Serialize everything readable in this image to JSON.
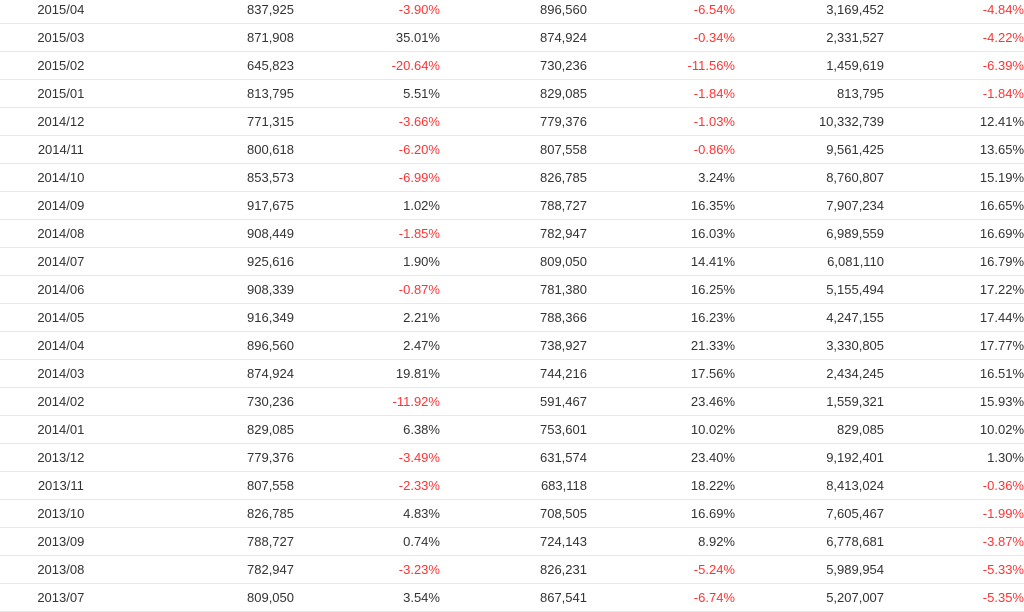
{
  "colors": {
    "text": "#333333",
    "negative": "#ff3333",
    "row_border": "#e8e8e8",
    "background": "#ffffff"
  },
  "rows": [
    [
      "2015/04",
      "837,925",
      "-3.90%",
      "896,560",
      "-6.54%",
      "3,169,452",
      "-4.84%"
    ],
    [
      "2015/03",
      "871,908",
      "35.01%",
      "874,924",
      "-0.34%",
      "2,331,527",
      "-4.22%"
    ],
    [
      "2015/02",
      "645,823",
      "-20.64%",
      "730,236",
      "-11.56%",
      "1,459,619",
      "-6.39%"
    ],
    [
      "2015/01",
      "813,795",
      "5.51%",
      "829,085",
      "-1.84%",
      "813,795",
      "-1.84%"
    ],
    [
      "2014/12",
      "771,315",
      "-3.66%",
      "779,376",
      "-1.03%",
      "10,332,739",
      "12.41%"
    ],
    [
      "2014/11",
      "800,618",
      "-6.20%",
      "807,558",
      "-0.86%",
      "9,561,425",
      "13.65%"
    ],
    [
      "2014/10",
      "853,573",
      "-6.99%",
      "826,785",
      "3.24%",
      "8,760,807",
      "15.19%"
    ],
    [
      "2014/09",
      "917,675",
      "1.02%",
      "788,727",
      "16.35%",
      "7,907,234",
      "16.65%"
    ],
    [
      "2014/08",
      "908,449",
      "-1.85%",
      "782,947",
      "16.03%",
      "6,989,559",
      "16.69%"
    ],
    [
      "2014/07",
      "925,616",
      "1.90%",
      "809,050",
      "14.41%",
      "6,081,110",
      "16.79%"
    ],
    [
      "2014/06",
      "908,339",
      "-0.87%",
      "781,380",
      "16.25%",
      "5,155,494",
      "17.22%"
    ],
    [
      "2014/05",
      "916,349",
      "2.21%",
      "788,366",
      "16.23%",
      "4,247,155",
      "17.44%"
    ],
    [
      "2014/04",
      "896,560",
      "2.47%",
      "738,927",
      "21.33%",
      "3,330,805",
      "17.77%"
    ],
    [
      "2014/03",
      "874,924",
      "19.81%",
      "744,216",
      "17.56%",
      "2,434,245",
      "16.51%"
    ],
    [
      "2014/02",
      "730,236",
      "-11.92%",
      "591,467",
      "23.46%",
      "1,559,321",
      "15.93%"
    ],
    [
      "2014/01",
      "829,085",
      "6.38%",
      "753,601",
      "10.02%",
      "829,085",
      "10.02%"
    ],
    [
      "2013/12",
      "779,376",
      "-3.49%",
      "631,574",
      "23.40%",
      "9,192,401",
      "1.30%"
    ],
    [
      "2013/11",
      "807,558",
      "-2.33%",
      "683,118",
      "18.22%",
      "8,413,024",
      "-0.36%"
    ],
    [
      "2013/10",
      "826,785",
      "4.83%",
      "708,505",
      "16.69%",
      "7,605,467",
      "-1.99%"
    ],
    [
      "2013/09",
      "788,727",
      "0.74%",
      "724,143",
      "8.92%",
      "6,778,681",
      "-3.87%"
    ],
    [
      "2013/08",
      "782,947",
      "-3.23%",
      "826,231",
      "-5.24%",
      "5,989,954",
      "-5.33%"
    ],
    [
      "2013/07",
      "809,050",
      "3.54%",
      "867,541",
      "-6.74%",
      "5,207,007",
      "-5.35%"
    ]
  ]
}
